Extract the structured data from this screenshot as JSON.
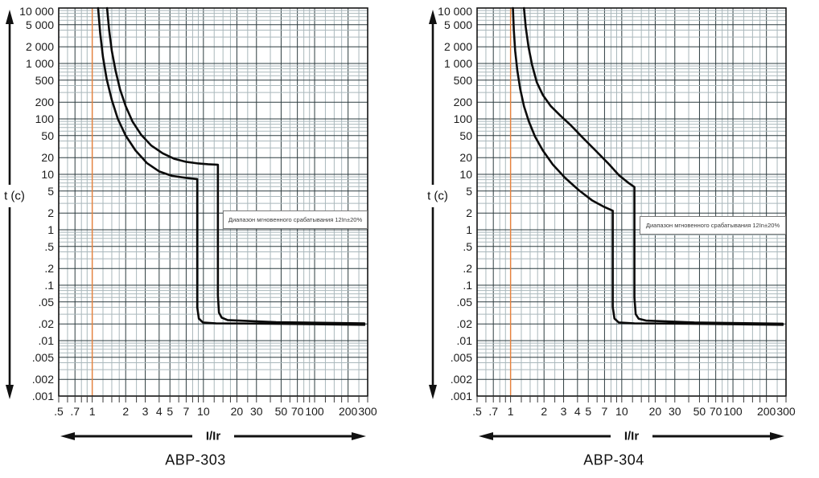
{
  "colors": {
    "background": "#ffffff",
    "grid_major": "#2e3d40",
    "grid_minor": "#aab8bc",
    "plot_border": "#141414",
    "curve": "#0b0b0b",
    "reference_line": "#e8823c",
    "axis_arrow": "#111111",
    "tick_text": "#1c1c1c",
    "annotation_text": "#3a3a3a",
    "annotation_border": "#7a7a7a"
  },
  "chart_data": [
    {
      "type": "line",
      "title": "АВР-303",
      "xlabel": "I/Ir",
      "ylabel": "t (c)",
      "x_scale": "log",
      "y_scale": "log",
      "xlim": [
        0.5,
        300
      ],
      "ylim": [
        0.001,
        10000
      ],
      "grid": true,
      "legend_position": "none",
      "x_tick_labels": [
        ".5",
        ".7",
        "1",
        "2",
        "3",
        "4",
        "5",
        "7",
        "10",
        "20",
        "30",
        "50",
        "70",
        "100",
        "200",
        "300"
      ],
      "x_tick_values": [
        0.5,
        0.7,
        1,
        2,
        3,
        4,
        5,
        7,
        10,
        20,
        30,
        50,
        70,
        100,
        200,
        300
      ],
      "y_tick_labels": [
        "10 000",
        "5 000",
        "2 000",
        "1 000",
        "500",
        "200",
        "100",
        "50",
        "20",
        "10",
        "5",
        "2",
        "1",
        ".5",
        ".2",
        ".1",
        ".05",
        ".02",
        ".01",
        ".005",
        ".002",
        ".001"
      ],
      "y_tick_values": [
        10000,
        5000,
        2000,
        1000,
        500,
        200,
        100,
        50,
        20,
        10,
        5,
        2,
        1,
        0.5,
        0.2,
        0.1,
        0.05,
        0.02,
        0.01,
        0.005,
        0.002,
        0.001
      ],
      "reference_line_x": 1,
      "annotation": "Диапазон мгновенного срабатывания 12In±20%",
      "series": [
        {
          "name": "trip-curve-lower",
          "points": [
            [
              1.13,
              10000
            ],
            [
              1.18,
              3500
            ],
            [
              1.25,
              1300
            ],
            [
              1.35,
              520
            ],
            [
              1.5,
              220
            ],
            [
              1.7,
              100
            ],
            [
              2.0,
              50
            ],
            [
              2.45,
              27
            ],
            [
              3.1,
              16
            ],
            [
              4.0,
              11.3
            ],
            [
              5.2,
              9.4
            ],
            [
              6.8,
              8.7
            ],
            [
              8.8,
              8.2
            ],
            [
              8.8,
              0.04
            ],
            [
              9.1,
              0.025
            ],
            [
              9.9,
              0.0212
            ],
            [
              13,
              0.0205
            ],
            [
              40,
              0.0202
            ],
            [
              280,
              0.0193
            ]
          ]
        },
        {
          "name": "trip-curve-upper",
          "points": [
            [
              1.36,
              10000
            ],
            [
              1.42,
              4000
            ],
            [
              1.5,
              1700
            ],
            [
              1.62,
              750
            ],
            [
              1.78,
              340
            ],
            [
              2.0,
              170
            ],
            [
              2.3,
              90
            ],
            [
              2.75,
              52
            ],
            [
              3.4,
              33
            ],
            [
              4.3,
              24
            ],
            [
              5.5,
              19
            ],
            [
              7.0,
              16.8
            ],
            [
              9.0,
              15.7
            ],
            [
              11,
              15.2
            ],
            [
              13.5,
              14.9
            ],
            [
              13.5,
              0.065
            ],
            [
              13.8,
              0.032
            ],
            [
              14.6,
              0.026
            ],
            [
              16.5,
              0.0235
            ],
            [
              45,
              0.0215
            ],
            [
              280,
              0.0205
            ]
          ]
        }
      ]
    },
    {
      "type": "line",
      "title": "АВР-304",
      "xlabel": "I/Ir",
      "ylabel": "t (c)",
      "x_scale": "log",
      "y_scale": "log",
      "xlim": [
        0.5,
        300
      ],
      "ylim": [
        0.001,
        10000
      ],
      "grid": true,
      "legend_position": "none",
      "x_tick_labels": [
        ".5",
        ".7",
        "1",
        "2",
        "3",
        "4",
        "5",
        "7",
        "10",
        "20",
        "30",
        "50",
        "70",
        "100",
        "200",
        "300"
      ],
      "x_tick_values": [
        0.5,
        0.7,
        1,
        2,
        3,
        4,
        5,
        7,
        10,
        20,
        30,
        50,
        70,
        100,
        200,
        300
      ],
      "y_tick_labels": [
        "10 000",
        "5 000",
        "2 000",
        "1 000",
        "500",
        "200",
        "100",
        "50",
        "20",
        "10",
        "5",
        "2",
        "1",
        ".5",
        ".2",
        ".1",
        ".05",
        ".02",
        ".01",
        ".005",
        ".002",
        ".001"
      ],
      "y_tick_values": [
        10000,
        5000,
        2000,
        1000,
        500,
        200,
        100,
        50,
        20,
        10,
        5,
        2,
        1,
        0.5,
        0.2,
        0.1,
        0.05,
        0.02,
        0.01,
        0.005,
        0.002,
        0.001
      ],
      "reference_line_x": 1,
      "annotation": "Диапазон мгновенного срабатывания 12In±20%",
      "series": [
        {
          "name": "trip-curve-lower",
          "points": [
            [
              1.05,
              10000
            ],
            [
              1.07,
              4000
            ],
            [
              1.1,
              1700
            ],
            [
              1.15,
              750
            ],
            [
              1.22,
              350
            ],
            [
              1.32,
              170
            ],
            [
              1.46,
              90
            ],
            [
              1.66,
              48
            ],
            [
              1.95,
              27
            ],
            [
              2.4,
              15
            ],
            [
              3.1,
              8.6
            ],
            [
              4.1,
              5.2
            ],
            [
              5.4,
              3.4
            ],
            [
              6.9,
              2.6
            ],
            [
              8.3,
              2.2
            ],
            [
              8.3,
              0.04
            ],
            [
              8.6,
              0.025
            ],
            [
              9.4,
              0.0212
            ],
            [
              13,
              0.0205
            ],
            [
              40,
              0.0202
            ],
            [
              280,
              0.0193
            ]
          ]
        },
        {
          "name": "trip-curve-upper",
          "points": [
            [
              1.32,
              10000
            ],
            [
              1.37,
              4500
            ],
            [
              1.45,
              2000
            ],
            [
              1.56,
              950
            ],
            [
              1.72,
              460
            ],
            [
              1.95,
              270
            ],
            [
              2.3,
              170
            ],
            [
              2.8,
              115
            ],
            [
              3.5,
              76
            ],
            [
              4.5,
              45
            ],
            [
              5.8,
              27
            ],
            [
              7.5,
              16
            ],
            [
              9.5,
              9.5
            ],
            [
              11.5,
              7.0
            ],
            [
              13,
              5.9
            ],
            [
              13,
              0.06
            ],
            [
              13.35,
              0.03
            ],
            [
              14.2,
              0.0248
            ],
            [
              16.5,
              0.023
            ],
            [
              45,
              0.0212
            ],
            [
              280,
              0.0202
            ]
          ]
        }
      ]
    }
  ]
}
